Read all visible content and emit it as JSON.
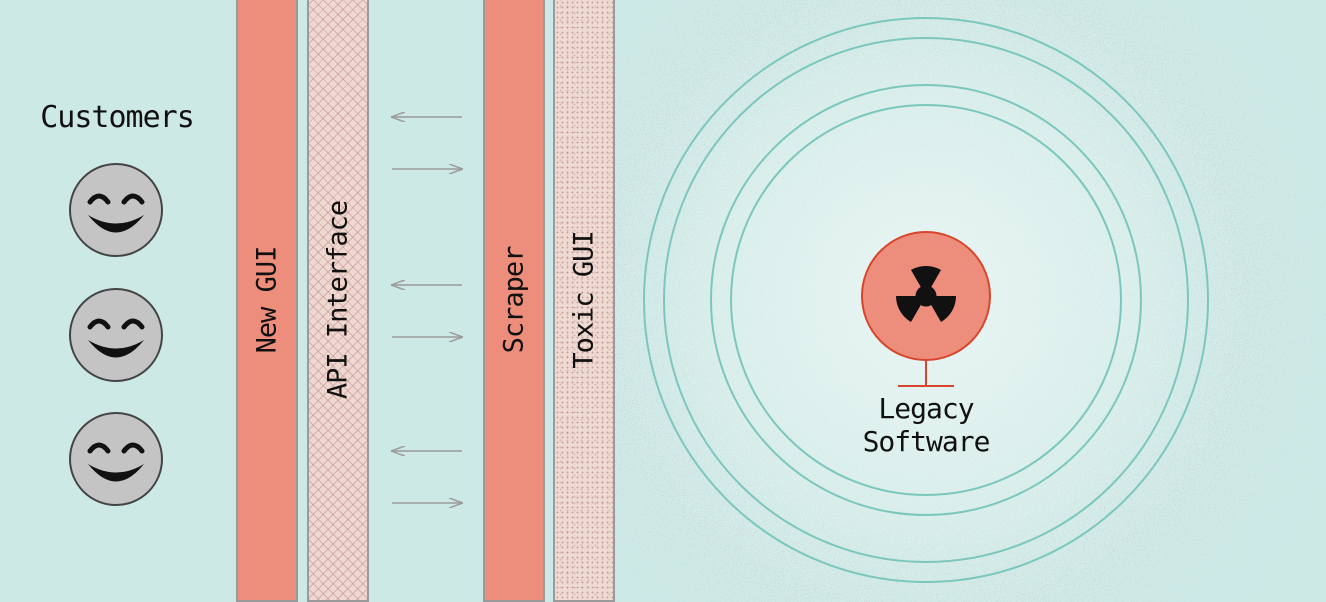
{
  "customers": {
    "label": "Customers",
    "faces": [
      "customer-face-1",
      "customer-face-2",
      "customer-face-3"
    ]
  },
  "layers": [
    {
      "key": "new-gui",
      "label": "New GUI",
      "fill": "solid"
    },
    {
      "key": "api-interface",
      "label": "API Interface",
      "fill": "hatch"
    },
    {
      "key": "scraper",
      "label": "Scraper",
      "fill": "solid"
    },
    {
      "key": "toxic-gui",
      "label": "Toxic GUI",
      "fill": "speckle"
    }
  ],
  "legacy": {
    "line1": "Legacy",
    "line2": "Software",
    "icon": "radiation-icon"
  },
  "colors": {
    "background": "#cde9e6",
    "salmon": "#ec8e7b",
    "ring": "#7cc7bd",
    "arrow": "#9a9a9a",
    "face": "#c4c4c4"
  }
}
